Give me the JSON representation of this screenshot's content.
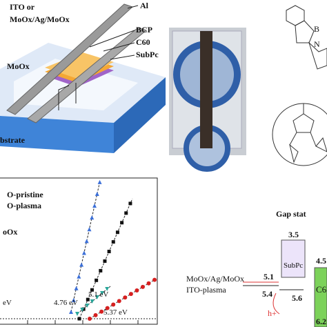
{
  "device": {
    "labels": {
      "ito": "ITO or",
      "anode": "MoOx/Ag/MoOx",
      "al": "Al",
      "bcp": "BCP",
      "c60": "C60",
      "subpc": "SubPc",
      "moox": "MoOx",
      "substrate": "bstrate"
    }
  },
  "molecule": {
    "atoms": [
      "B",
      "N"
    ]
  },
  "ups": {
    "legend": [
      "O-pristine",
      "O-plasma"
    ],
    "layer": "oOx",
    "annotations": [
      "4.76 eV",
      "5.1 eV",
      "5.37 eV",
      "eV"
    ]
  },
  "energy": {
    "title": "Gap stat",
    "left_labels": [
      "MoOx/Ag/MoOx",
      "ITO-plasma"
    ],
    "levels": [
      "3.5",
      "4.5",
      "5.1",
      "5.4",
      "5.6",
      "6.2"
    ],
    "boxes": [
      "SubPc",
      "C6"
    ],
    "carrier": "h+"
  }
}
